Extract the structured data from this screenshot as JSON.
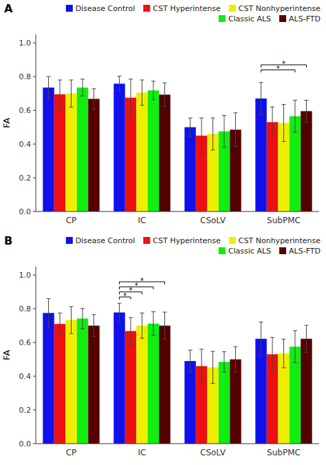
{
  "chart_data": [
    {
      "type": "bar",
      "title": "A",
      "y_label": "FA",
      "categories": [
        "CP",
        "IC",
        "CSoLV",
        "SubPMC"
      ],
      "series": [
        {
          "name": "Disease Control",
          "color": "#1010EE",
          "values": [
            0.735,
            0.758,
            0.5,
            0.67
          ],
          "errors": [
            0.065,
            0.045,
            0.055,
            0.095
          ]
        },
        {
          "name": "CST Hyperintense",
          "color": "#EE1010",
          "values": [
            0.695,
            0.675,
            0.45,
            0.53
          ],
          "errors": [
            0.085,
            0.11,
            0.105,
            0.09
          ]
        },
        {
          "name": "CST Nonhyperintense",
          "color": "#EEEE00",
          "values": [
            0.7,
            0.705,
            0.46,
            0.525
          ],
          "errors": [
            0.08,
            0.075,
            0.095,
            0.11
          ]
        },
        {
          "name": "Classic ALS",
          "color": "#10EE10",
          "values": [
            0.735,
            0.718,
            0.475,
            0.565
          ],
          "errors": [
            0.05,
            0.055,
            0.095,
            0.095
          ]
        },
        {
          "name": "ALS-FTD",
          "color": "#550000",
          "values": [
            0.668,
            0.693,
            0.485,
            0.595
          ],
          "errors": [
            0.06,
            0.07,
            0.1,
            0.065
          ]
        }
      ],
      "annotations": [
        {
          "label": "*",
          "category": "SubPMC",
          "series": [
            "Disease Control",
            "Classic ALS"
          ],
          "y": 0.84
        },
        {
          "label": "*",
          "category": "SubPMC",
          "series": [
            "Disease Control",
            "ALS-FTD"
          ],
          "y": 0.87
        }
      ],
      "ylim": [
        0.0,
        1.05
      ],
      "yticks": [
        {
          "value": 0.0,
          "label": "0.0"
        },
        0.2,
        0.4,
        0.6,
        0.8,
        {
          "value": 1.0,
          "label": "1.0"
        }
      ],
      "grid": false,
      "legend": "upper right"
    },
    {
      "type": "bar",
      "title": "B",
      "y_label": "FA",
      "categories": [
        "CP",
        "IC",
        "CSoLV",
        "SubPMC"
      ],
      "series": [
        {
          "name": "Disease Control",
          "color": "#1010EE",
          "values": [
            0.775,
            0.778,
            0.49,
            0.622
          ],
          "errors": [
            0.085,
            0.055,
            0.065,
            0.1
          ]
        },
        {
          "name": "CST Hyperintense",
          "color": "#EE1010",
          "values": [
            0.71,
            0.668,
            0.46,
            0.53
          ],
          "errors": [
            0.065,
            0.08,
            0.1,
            0.1
          ]
        },
        {
          "name": "CST Nonhyperintense",
          "color": "#EEEE00",
          "values": [
            0.733,
            0.7,
            0.452,
            0.535
          ],
          "errors": [
            0.08,
            0.075,
            0.095,
            0.085
          ]
        },
        {
          "name": "Classic ALS",
          "color": "#10EE10",
          "values": [
            0.742,
            0.712,
            0.485,
            0.575
          ],
          "errors": [
            0.06,
            0.07,
            0.06,
            0.095
          ]
        },
        {
          "name": "ALS-FTD",
          "color": "#550000",
          "values": [
            0.7,
            0.7,
            0.5,
            0.622
          ],
          "errors": [
            0.065,
            0.08,
            0.075,
            0.08
          ]
        }
      ],
      "annotations": [
        {
          "label": "*",
          "category": "IC",
          "series": [
            "Disease Control",
            "CST Hyperintense"
          ],
          "y": 0.87
        },
        {
          "label": "*",
          "category": "IC",
          "series": [
            "Disease Control",
            "CST Nonhyperintense"
          ],
          "y": 0.9
        },
        {
          "label": "*",
          "category": "IC",
          "series": [
            "Disease Control",
            "Classic ALS"
          ],
          "y": 0.93
        },
        {
          "label": "*",
          "category": "IC",
          "series": [
            "Disease Control",
            "ALS-FTD"
          ],
          "y": 0.96
        }
      ],
      "ylim": [
        0.0,
        1.05
      ],
      "yticks": [
        {
          "value": 0.0,
          "label": "0.0"
        },
        0.2,
        0.4,
        0.6,
        0.8,
        {
          "value": 1.0,
          "label": "1.0"
        }
      ],
      "grid": false,
      "legend": "upper right"
    }
  ]
}
